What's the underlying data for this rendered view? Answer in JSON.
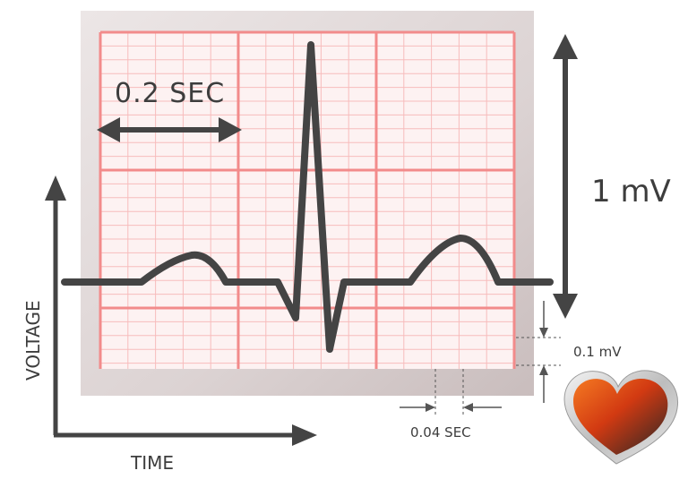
{
  "labels": {
    "interval_large": "0.2 SEC",
    "amplitude_large": "1 mV",
    "interval_small": "0.04 SEC",
    "amplitude_small": "0.1 mV",
    "x_axis": "TIME",
    "y_axis": "VOLTAGE"
  },
  "colors": {
    "grid_major": "#f28b8b",
    "grid_minor": "#f7bcbc",
    "paper": "#fdf1f1",
    "frame": "#d9cfcf",
    "trace": "#444444",
    "arrow": "#444444",
    "heart_light": "#f26a1b",
    "heart_dark": "#2b2b2b"
  },
  "icons": {
    "heart": "heart-icon"
  }
}
